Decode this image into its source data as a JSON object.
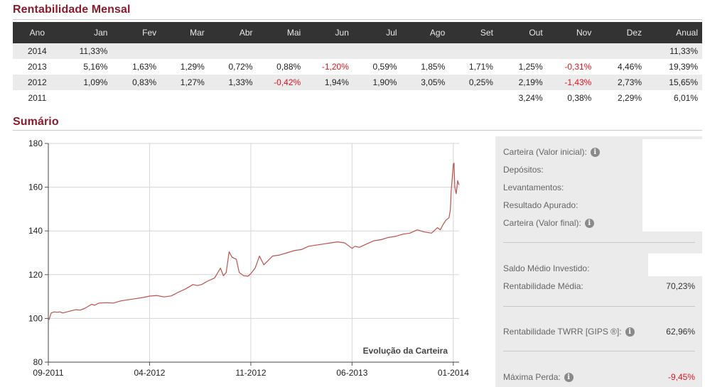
{
  "monthly": {
    "title": "Rentabilidade Mensal",
    "headers": [
      "Ano",
      "Jan",
      "Fev",
      "Mar",
      "Abr",
      "Mai",
      "Jun",
      "Jul",
      "Ago",
      "Set",
      "Out",
      "Nov",
      "Dez",
      "Anual"
    ],
    "rows": [
      {
        "year": "2014",
        "cells": [
          "11,33%",
          "",
          "",
          "",
          "",
          "",
          "",
          "",
          "",
          "",
          "",
          "",
          "11,33%"
        ],
        "negative": []
      },
      {
        "year": "2013",
        "cells": [
          "5,16%",
          "1,63%",
          "1,29%",
          "0,72%",
          "0,88%",
          "-1,20%",
          "0,59%",
          "1,85%",
          "1,71%",
          "1,25%",
          "-0,31%",
          "4,46%",
          "19,39%"
        ],
        "negative": [
          5,
          10
        ]
      },
      {
        "year": "2012",
        "cells": [
          "1,09%",
          "0,83%",
          "1,27%",
          "1,33%",
          "-0,42%",
          "1,94%",
          "1,90%",
          "3,05%",
          "0,25%",
          "2,19%",
          "-1,43%",
          "2,73%",
          "15,65%"
        ],
        "negative": [
          4,
          10
        ]
      },
      {
        "year": "2011",
        "cells": [
          "",
          "",
          "",
          "",
          "",
          "",
          "",
          "",
          "",
          "3,24%",
          "0,38%",
          "2,29%",
          "6,01%"
        ],
        "negative": []
      }
    ]
  },
  "summary": {
    "title": "Sumário",
    "items": [
      {
        "label": "Carteira (Valor inicial):",
        "info": true,
        "value": ""
      },
      {
        "label": "Depósitos:",
        "info": false,
        "value": ""
      },
      {
        "label": "Levantamentos:",
        "info": false,
        "value": ""
      },
      {
        "label": "Resultado Apurado:",
        "info": false,
        "value": ""
      },
      {
        "label": "Carteira (Valor final):",
        "info": true,
        "value": ""
      },
      {
        "label": "Saldo Médio Investido:",
        "info": false,
        "value": ""
      },
      {
        "label": "Rentabilidade Média:",
        "info": false,
        "value": "70,23%"
      },
      {
        "label": "Rentabilidade TWRR [GIPS ®]:",
        "info": true,
        "value": "62,96%"
      },
      {
        "label": "Máxima Perda:",
        "info": true,
        "value": "-9,45%",
        "negative": true
      }
    ]
  },
  "chart_data": {
    "type": "line",
    "title": "",
    "annotation": "Evolução da Carteira",
    "xlabel": "",
    "ylabel": "",
    "x_ticks": [
      "09-2011",
      "04-2012",
      "11-2012",
      "06-2013",
      "01-2014"
    ],
    "x_tick_months": [
      0,
      7,
      14,
      21,
      28
    ],
    "ylim": [
      80,
      180
    ],
    "y_ticks": [
      80,
      100,
      120,
      140,
      160,
      180
    ],
    "grid": true,
    "color": "#c0504d",
    "series": [
      {
        "x_month": [
          0,
          0.05,
          0.2,
          0.4,
          0.6,
          0.8,
          1.0,
          1.3,
          1.6,
          1.9,
          2.2,
          2.5,
          3.0,
          3.2,
          3.5,
          4.0,
          4.5,
          5.0,
          5.5,
          6.0,
          6.5,
          7.0,
          7.5,
          8.0,
          8.5,
          9.0,
          9.5,
          10.0,
          10.3,
          10.6,
          11.0,
          11.5,
          11.9,
          12.1,
          12.3,
          12.5,
          12.7,
          13.0,
          13.2,
          13.5,
          13.8,
          14.0,
          14.3,
          14.6,
          14.9,
          15.2,
          15.5,
          16.0,
          16.5,
          17.0,
          17.5,
          18.0,
          18.5,
          19.0,
          19.5,
          20.0,
          20.5,
          21.0,
          21.2,
          21.5,
          22.0,
          22.5,
          23.0,
          23.5,
          24.0,
          24.5,
          25.0,
          25.5,
          26.0,
          26.5,
          26.9,
          27.1,
          27.3,
          27.5,
          27.7,
          27.8,
          27.85,
          28.0,
          28.05,
          28.1,
          28.2,
          28.3,
          28.4
        ],
        "values": [
          100,
          99.5,
          102.5,
          103,
          102.8,
          103,
          102.5,
          103,
          103.5,
          104,
          103.8,
          104.5,
          106.5,
          106,
          107,
          107.2,
          107,
          108,
          108.5,
          109,
          109.5,
          110.2,
          110.5,
          109.8,
          110.3,
          112,
          113.5,
          115.5,
          115,
          115.5,
          117,
          118.5,
          123,
          119.5,
          121,
          130.5,
          128,
          127,
          121,
          119.5,
          119.3,
          120.5,
          123,
          128.5,
          124.5,
          126.5,
          128.5,
          129,
          130,
          131,
          131.5,
          133,
          133.5,
          134,
          134.5,
          135,
          134.5,
          132,
          133,
          132.5,
          134,
          135.5,
          136,
          137,
          137.5,
          138.5,
          139,
          140.5,
          139.5,
          139,
          141.5,
          140.5,
          143,
          145,
          146,
          150,
          158,
          170.5,
          171,
          160,
          157,
          163,
          161
        ]
      }
    ]
  }
}
